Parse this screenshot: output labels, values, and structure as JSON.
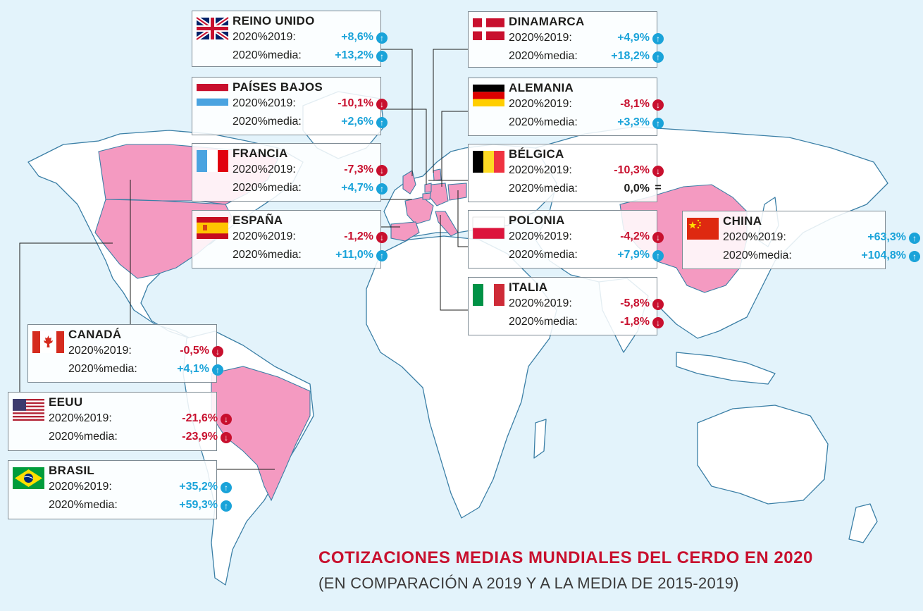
{
  "title": "COTIZACIONES MEDIAS MUNDIALES DEL CERDO EN 2020",
  "subtitle": "(EN COMPARACIÓN  A 2019 Y A LA MEDIA DE 2015-2019)",
  "colors": {
    "up": "#1aa3d9",
    "down": "#c8102e",
    "highlight": "#f49ac1",
    "sea": "#e3f3fb"
  },
  "row_labels": {
    "vs2019": "2020%2019:",
    "vsMedia": "2020%media:"
  },
  "countries": {
    "reino_unido": {
      "name": "REINO UNIDO",
      "flag": "uk-flag",
      "v2019": "+8,6%",
      "d2019": "up",
      "vmedia": "+13,2%",
      "dmedia": "up"
    },
    "dinamarca": {
      "name": "DINAMARCA",
      "flag": "denmark-flag",
      "v2019": "+4,9%",
      "d2019": "up",
      "vmedia": "+18,2%",
      "dmedia": "up"
    },
    "paises_bajos": {
      "name": "PAÍSES BAJOS",
      "flag": "netherlands-flag",
      "v2019": "-10,1%",
      "d2019": "down",
      "vmedia": "+2,6%",
      "dmedia": "up"
    },
    "alemania": {
      "name": "ALEMANIA",
      "flag": "germany-flag",
      "v2019": "-8,1%",
      "d2019": "down",
      "vmedia": "+3,3%",
      "dmedia": "up"
    },
    "francia": {
      "name": "FRANCIA",
      "flag": "france-flag",
      "v2019": "-7,3%",
      "d2019": "down",
      "vmedia": "+4,7%",
      "dmedia": "up"
    },
    "belgica": {
      "name": "BÉLGICA",
      "flag": "belgium-flag",
      "v2019": "-10,3%",
      "d2019": "down",
      "vmedia": "0,0%",
      "dmedia": "flat"
    },
    "espana": {
      "name": "ESPAÑA",
      "flag": "spain-flag",
      "v2019": "-1,2%",
      "d2019": "down",
      "vmedia": "+11,0%",
      "dmedia": "up"
    },
    "polonia": {
      "name": "POLONIA",
      "flag": "poland-flag",
      "v2019": "-4,2%",
      "d2019": "down",
      "vmedia": "+7,9%",
      "dmedia": "up"
    },
    "china": {
      "name": "CHINA",
      "flag": "china-flag",
      "v2019": "+63,3%",
      "d2019": "up",
      "vmedia": "+104,8%",
      "dmedia": "up"
    },
    "italia": {
      "name": "ITALIA",
      "flag": "italy-flag",
      "v2019": "-5,8%",
      "d2019": "down",
      "vmedia": "-1,8%",
      "dmedia": "down"
    },
    "canada": {
      "name": "CANADÁ",
      "flag": "canada-flag",
      "v2019": "-0,5%",
      "d2019": "down",
      "vmedia": "+4,1%",
      "dmedia": "up"
    },
    "eeuu": {
      "name": "EEUU",
      "flag": "usa-flag",
      "v2019": "-21,6%",
      "d2019": "down",
      "vmedia": "-23,9%",
      "dmedia": "down"
    },
    "brasil": {
      "name": "BRASIL",
      "flag": "brazil-flag",
      "v2019": "+35,2%",
      "d2019": "up",
      "vmedia": "+59,3%",
      "dmedia": "up"
    }
  },
  "direction_symbols": {
    "up": "↑",
    "down": "↓",
    "flat": "="
  }
}
